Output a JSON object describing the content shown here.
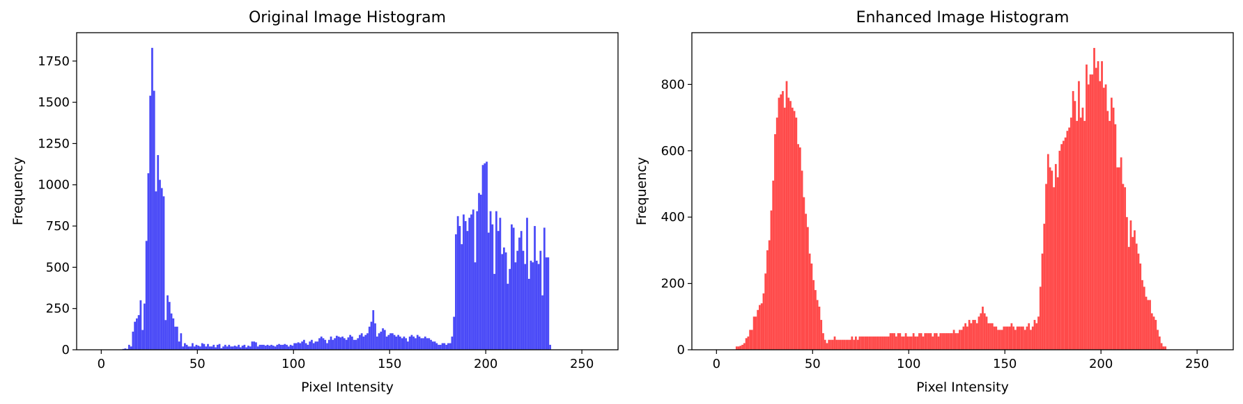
{
  "chart_data": [
    {
      "type": "bar",
      "title": "Original Image Histogram",
      "xlabel": "Pixel Intensity",
      "ylabel": "Frequency",
      "xlim": [
        -12.8,
        268.8
      ],
      "ylim": [
        0,
        1922
      ],
      "xticks": [
        0,
        50,
        100,
        150,
        200,
        250
      ],
      "yticks": [
        0,
        250,
        500,
        750,
        1000,
        1250,
        1500,
        1750
      ],
      "grid": false,
      "color": "#4a4af7",
      "bin_start": 0,
      "bin_width": 1,
      "values": [
        0,
        0,
        0,
        0,
        0,
        0,
        0,
        0,
        0,
        0,
        0,
        5,
        8,
        5,
        30,
        20,
        110,
        170,
        190,
        210,
        300,
        120,
        280,
        660,
        1070,
        1540,
        1830,
        1570,
        960,
        1180,
        1030,
        980,
        930,
        180,
        330,
        290,
        220,
        190,
        140,
        140,
        50,
        100,
        20,
        40,
        30,
        20,
        20,
        40,
        20,
        30,
        25,
        20,
        40,
        35,
        20,
        35,
        20,
        20,
        30,
        15,
        30,
        35,
        10,
        20,
        30,
        20,
        30,
        20,
        20,
        25,
        20,
        30,
        15,
        25,
        30,
        15,
        25,
        20,
        50,
        50,
        45,
        20,
        30,
        30,
        30,
        25,
        30,
        25,
        30,
        25,
        20,
        30,
        35,
        30,
        30,
        35,
        30,
        20,
        30,
        25,
        40,
        40,
        45,
        40,
        50,
        60,
        40,
        30,
        50,
        60,
        40,
        50,
        50,
        70,
        80,
        70,
        60,
        40,
        60,
        80,
        60,
        70,
        85,
        80,
        75,
        80,
        70,
        60,
        75,
        90,
        80,
        60,
        60,
        70,
        90,
        100,
        80,
        90,
        100,
        140,
        170,
        240,
        160,
        80,
        100,
        110,
        130,
        120,
        80,
        90,
        100,
        100,
        90,
        80,
        90,
        80,
        70,
        80,
        70,
        50,
        80,
        90,
        80,
        70,
        90,
        80,
        70,
        70,
        80,
        70,
        70,
        60,
        50,
        50,
        40,
        30,
        30,
        40,
        40,
        30,
        40,
        40,
        80,
        200,
        700,
        810,
        750,
        640,
        820,
        780,
        720,
        800,
        820,
        850,
        530,
        840,
        950,
        940,
        1120,
        1130,
        1140,
        710,
        840,
        760,
        460,
        840,
        720,
        800,
        580,
        620,
        590,
        400,
        490,
        760,
        740,
        530,
        600,
        680,
        720,
        600,
        520,
        800,
        430,
        540,
        530,
        750,
        540,
        520,
        600,
        330,
        740,
        560,
        560,
        30,
        0,
        0,
        0,
        0,
        0,
        0,
        0,
        0,
        0,
        0,
        0,
        0,
        0,
        0,
        0,
        0
      ]
    },
    {
      "type": "bar",
      "title": "Enhanced Image Histogram",
      "xlabel": "Pixel Intensity",
      "ylabel": "Frequency",
      "xlim": [
        -12.8,
        268.8
      ],
      "ylim": [
        0,
        956
      ],
      "xticks": [
        0,
        50,
        100,
        150,
        200,
        250
      ],
      "yticks": [
        0,
        200,
        400,
        600,
        800
      ],
      "grid": false,
      "color": "#ff4a4a",
      "bin_start": 0,
      "bin_width": 1,
      "values": [
        0,
        0,
        0,
        0,
        0,
        0,
        0,
        0,
        0,
        0,
        10,
        10,
        12,
        15,
        20,
        35,
        40,
        60,
        60,
        100,
        100,
        120,
        135,
        140,
        170,
        230,
        300,
        330,
        420,
        510,
        650,
        700,
        760,
        770,
        780,
        730,
        810,
        760,
        750,
        730,
        720,
        700,
        620,
        610,
        540,
        460,
        410,
        370,
        290,
        260,
        210,
        180,
        150,
        130,
        90,
        50,
        30,
        20,
        30,
        30,
        30,
        40,
        30,
        30,
        30,
        30,
        30,
        30,
        30,
        30,
        40,
        30,
        40,
        30,
        40,
        40,
        40,
        40,
        40,
        40,
        40,
        40,
        40,
        40,
        40,
        40,
        40,
        40,
        40,
        40,
        50,
        50,
        50,
        40,
        50,
        50,
        40,
        40,
        50,
        40,
        40,
        40,
        50,
        40,
        40,
        50,
        50,
        40,
        50,
        50,
        50,
        50,
        40,
        50,
        50,
        40,
        50,
        50,
        50,
        50,
        50,
        50,
        50,
        60,
        50,
        50,
        60,
        60,
        70,
        80,
        70,
        90,
        80,
        90,
        90,
        80,
        100,
        110,
        130,
        110,
        100,
        80,
        80,
        80,
        70,
        70,
        60,
        60,
        60,
        70,
        70,
        70,
        70,
        80,
        70,
        60,
        70,
        70,
        70,
        70,
        60,
        70,
        80,
        60,
        70,
        90,
        80,
        100,
        190,
        290,
        380,
        500,
        590,
        550,
        540,
        490,
        560,
        520,
        600,
        620,
        630,
        640,
        660,
        670,
        700,
        780,
        750,
        690,
        810,
        700,
        730,
        690,
        860,
        800,
        830,
        830,
        910,
        850,
        870,
        810,
        870,
        790,
        800,
        720,
        690,
        760,
        730,
        680,
        550,
        550,
        580,
        500,
        490,
        400,
        310,
        390,
        340,
        360,
        320,
        290,
        260,
        210,
        190,
        160,
        150,
        150,
        110,
        100,
        90,
        60,
        40,
        20,
        10,
        10,
        0,
        0,
        0,
        0,
        0,
        0,
        0,
        0,
        0
      ]
    }
  ]
}
